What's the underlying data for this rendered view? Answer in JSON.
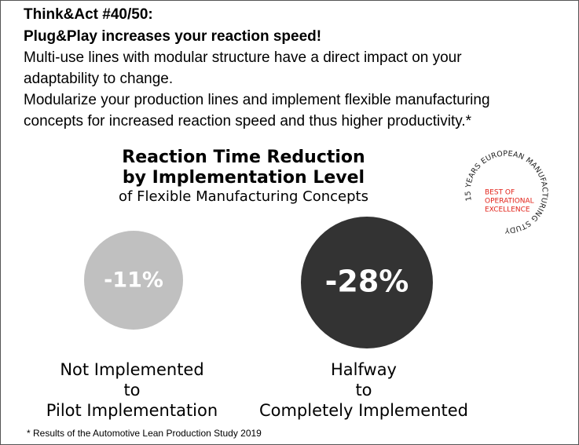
{
  "header": {
    "title": "Think&Act #40/50:",
    "subtitle": "Plug&Play increases your reaction speed!",
    "body": [
      "Multi-use lines with modular structure have a direct impact on your",
      "adaptability to change.",
      "Modularize your production lines and implement flexible manufacturing",
      "concepts for increased reaction speed and thus higher productivity.*"
    ]
  },
  "infographic": {
    "title": [
      "Reaction Time Reduction",
      "by Implementation Level"
    ],
    "subtitle": "of Flexible Manufacturing Concepts",
    "items": [
      {
        "value_label": "-11%",
        "caption": [
          "Not Implemented",
          "to",
          "Pilot Implementation"
        ]
      },
      {
        "value_label": "-28%",
        "caption": [
          "Halfway",
          "to",
          "Completely Implemented"
        ]
      }
    ]
  },
  "badge": {
    "ring_text": "15 YEARS EUROPEAN MANUFACTURING STUDY",
    "center": [
      "BEST OF",
      "OPERATIONAL",
      "EXCELLENCE"
    ]
  },
  "footnote": "* Results of the Automotive Lean Production Study 2019"
}
